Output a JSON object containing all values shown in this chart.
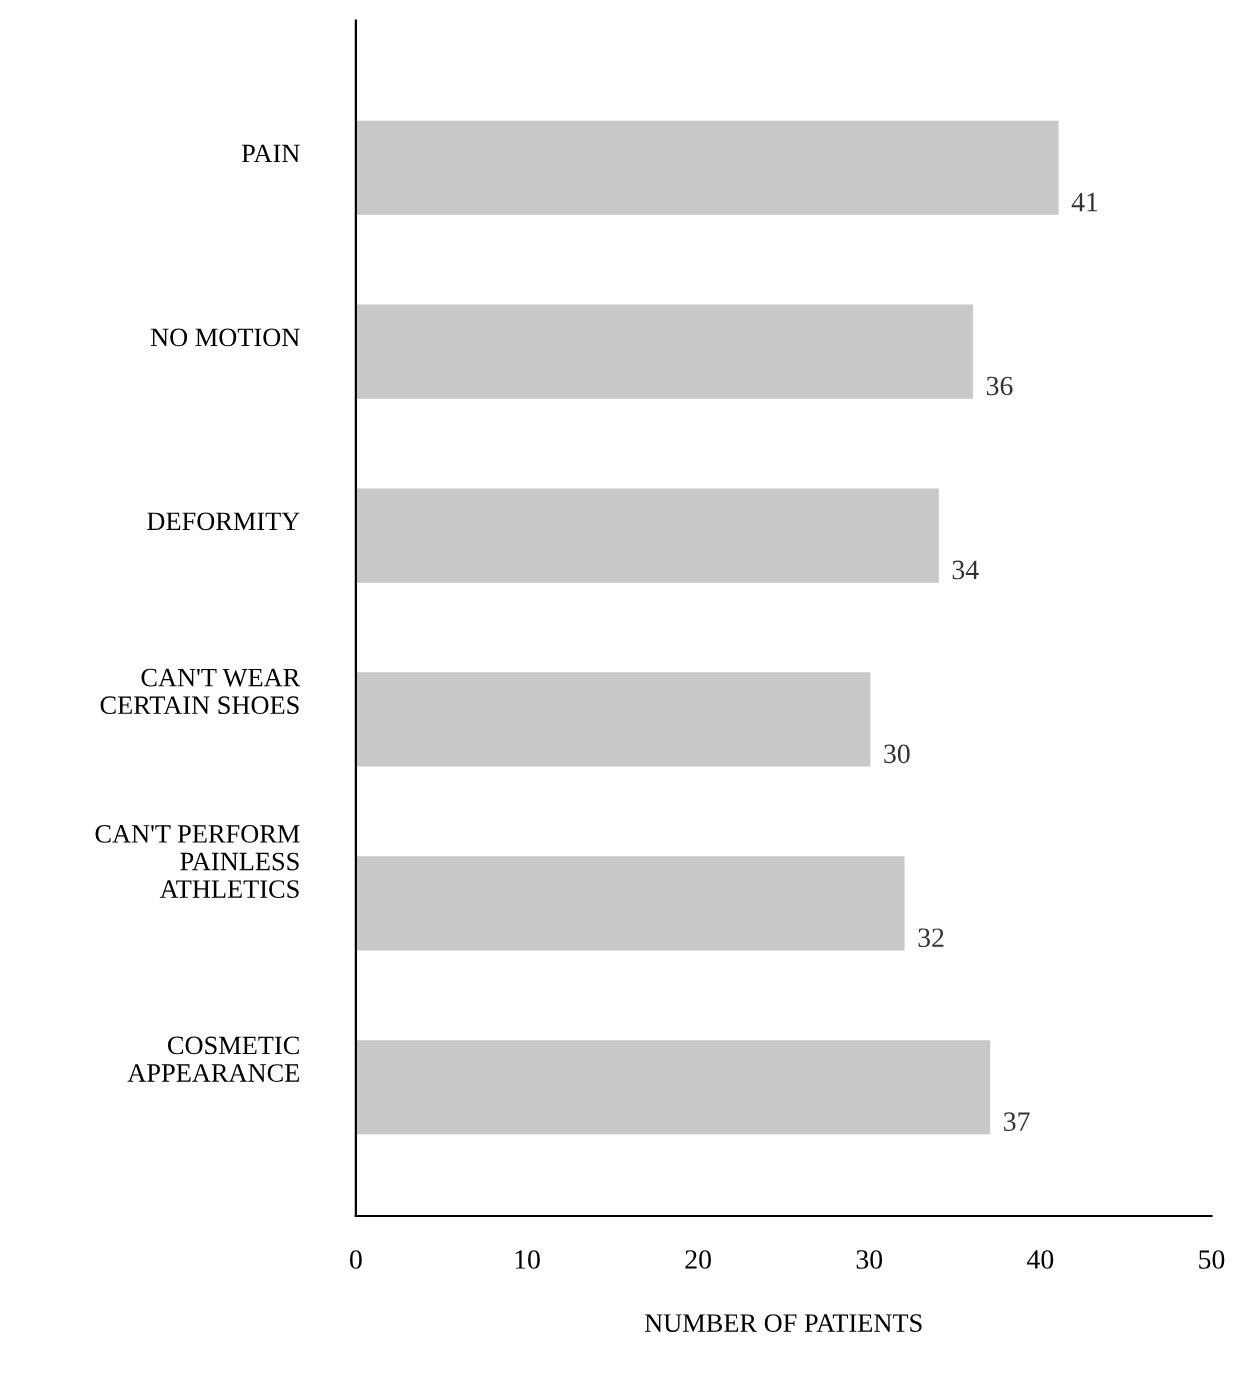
{
  "chart_data": {
    "type": "bar",
    "orientation": "horizontal",
    "categories": [
      "PAIN",
      "NO MOTION",
      "DEFORMITY",
      "CAN'T WEAR\nCERTAIN SHOES",
      "CAN'T PERFORM\nPAINLESS\nATHLETICS",
      "COSMETIC\nAPPEARANCE"
    ],
    "values": [
      41,
      36,
      34,
      30,
      32,
      37
    ],
    "color": "#c8c8c8",
    "xlabel": "NUMBER OF PATIENTS",
    "xlim": [
      0,
      50
    ],
    "xticks": [
      0,
      10,
      20,
      30,
      40,
      50
    ],
    "data_labels": true,
    "grid": false,
    "legend": false
  }
}
